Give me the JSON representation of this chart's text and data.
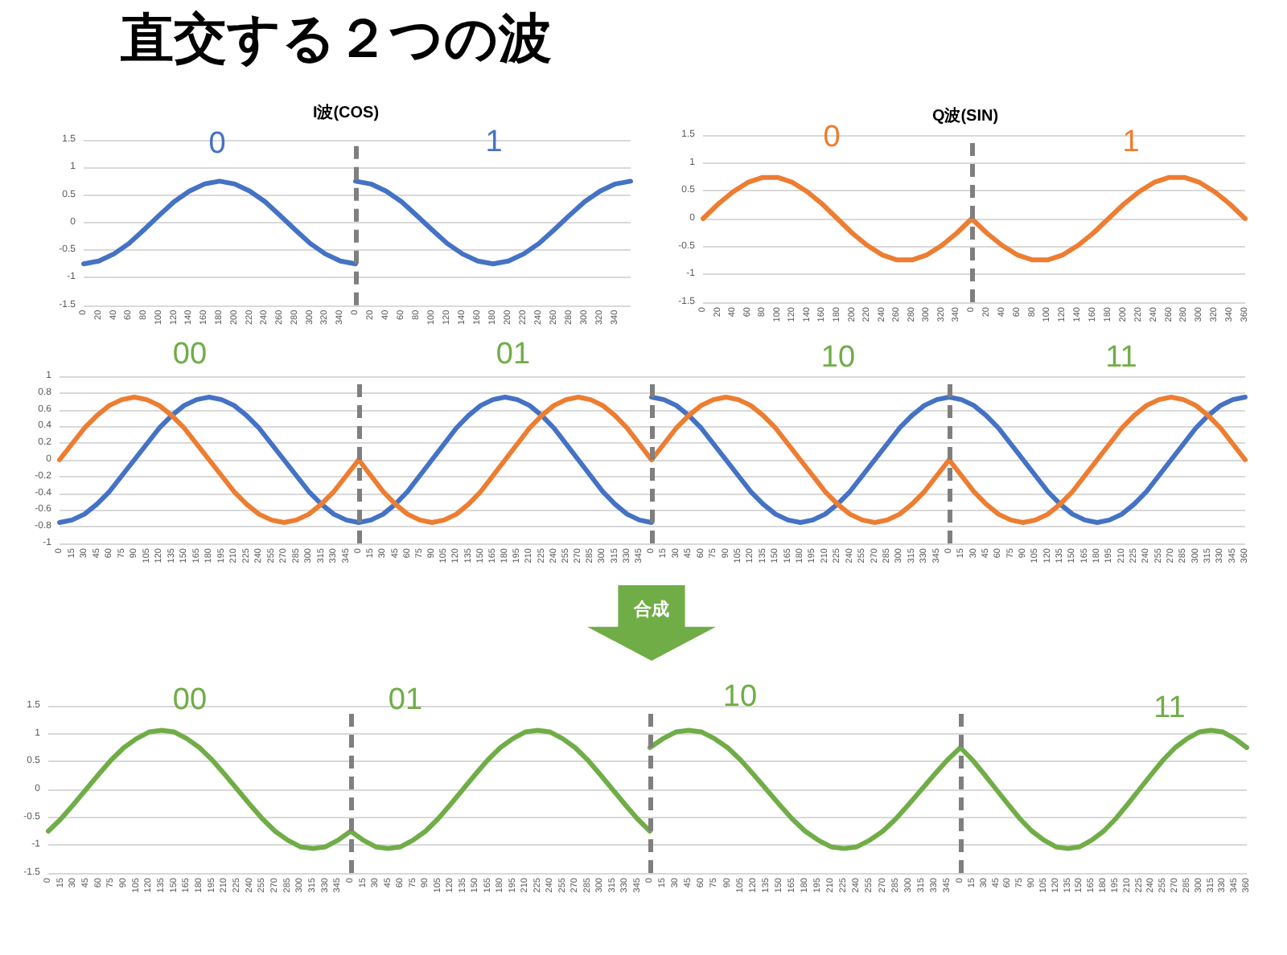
{
  "chart_data": [
    {
      "type": "other",
      "title": "直交する２つの波"
    },
    {
      "type": "line",
      "title": "I波(COS)",
      "x": [
        0,
        20,
        40,
        60,
        80,
        100,
        120,
        140,
        160,
        180,
        200,
        220,
        240,
        260,
        280,
        300,
        320,
        340,
        360
      ],
      "series": [
        {
          "color": "#4472c4",
          "values": [
            -0.75,
            -0.7,
            -0.57,
            -0.38,
            -0.13,
            0.13,
            0.38,
            0.57,
            0.7,
            0.75,
            0.7,
            0.57,
            0.38,
            0.13,
            -0.13,
            -0.38,
            -0.57,
            -0.7,
            -0.75
          ]
        }
      ],
      "xlim": [
        0,
        360
      ],
      "ylim": [
        -1.5,
        1.5
      ],
      "xticks": [
        0,
        20,
        40,
        60,
        80,
        100,
        120,
        140,
        160,
        180,
        200,
        220,
        240,
        260,
        280,
        300,
        320,
        340
      ],
      "yticks": [
        -1.5,
        -1,
        -0.5,
        0,
        0.5,
        1,
        1.5
      ],
      "grid": "y",
      "ref_lines": [
        {
          "axis": "x",
          "value": 360,
          "color": "#7f7f7f",
          "line_style": "dashed"
        }
      ],
      "annotations": [
        "0"
      ]
    },
    {
      "type": "line",
      "x": [
        0,
        20,
        40,
        60,
        80,
        100,
        120,
        140,
        160,
        180,
        200,
        220,
        240,
        260,
        280,
        300,
        320,
        340,
        360
      ],
      "series": [
        {
          "color": "#4472c4",
          "values": [
            0.75,
            0.7,
            0.57,
            0.38,
            0.13,
            -0.13,
            -0.38,
            -0.57,
            -0.7,
            -0.75,
            -0.7,
            -0.57,
            -0.38,
            -0.13,
            0.13,
            0.38,
            0.57,
            0.7,
            0.75
          ]
        }
      ],
      "xlim": [
        0,
        360
      ],
      "ylim": [
        -1.5,
        1.5
      ],
      "xticks": [
        0,
        20,
        40,
        60,
        80,
        100,
        120,
        140,
        160,
        180,
        200,
        220,
        240,
        260,
        280,
        300,
        320,
        340
      ],
      "yticks": [
        -1.5,
        -1,
        -0.5,
        0,
        0.5,
        1,
        1.5
      ],
      "grid": "y",
      "tick_labels": "x",
      "annotations": [
        "1"
      ]
    },
    {
      "type": "line",
      "title": "Q波(SIN)",
      "x": [
        0,
        20,
        40,
        60,
        80,
        100,
        120,
        140,
        160,
        180,
        200,
        220,
        240,
        260,
        280,
        300,
        320,
        340,
        360
      ],
      "series": [
        {
          "color": "#ed7d31",
          "values": [
            0,
            0.26,
            0.48,
            0.65,
            0.74,
            0.74,
            0.65,
            0.48,
            0.26,
            0,
            -0.26,
            -0.48,
            -0.65,
            -0.74,
            -0.74,
            -0.65,
            -0.48,
            -0.26,
            0
          ]
        }
      ],
      "xlim": [
        0,
        360
      ],
      "ylim": [
        -1.5,
        1.5
      ],
      "xticks": [
        0,
        20,
        40,
        60,
        80,
        100,
        120,
        140,
        160,
        180,
        200,
        220,
        240,
        260,
        280,
        300,
        320,
        340
      ],
      "yticks": [
        -1.5,
        -1,
        -0.5,
        0,
        0.5,
        1,
        1.5
      ],
      "grid": "y",
      "ref_lines": [
        {
          "axis": "x",
          "value": 360,
          "color": "#7f7f7f",
          "line_style": "dashed"
        }
      ],
      "annotations": [
        "0"
      ]
    },
    {
      "type": "line",
      "x": [
        0,
        20,
        40,
        60,
        80,
        100,
        120,
        140,
        160,
        180,
        200,
        220,
        240,
        260,
        280,
        300,
        320,
        340,
        360
      ],
      "series": [
        {
          "color": "#ed7d31",
          "values": [
            0,
            -0.26,
            -0.48,
            -0.65,
            -0.74,
            -0.74,
            -0.65,
            -0.48,
            -0.26,
            0,
            0.26,
            0.48,
            0.65,
            0.74,
            0.74,
            0.65,
            0.48,
            0.26,
            0
          ]
        }
      ],
      "xlim": [
        0,
        360
      ],
      "ylim": [
        -1.5,
        1.5
      ],
      "xticks": [
        0,
        20,
        40,
        60,
        80,
        100,
        120,
        140,
        160,
        180,
        200,
        220,
        240,
        260,
        280,
        300,
        320,
        340,
        360
      ],
      "yticks": [
        -1.5,
        -1,
        -0.5,
        0,
        0.5,
        1,
        1.5
      ],
      "grid": "y",
      "tick_labels": "x",
      "annotations": [
        "1"
      ]
    },
    {
      "type": "line",
      "x": [
        0,
        15,
        30,
        45,
        60,
        75,
        90,
        105,
        120,
        135,
        150,
        165,
        180,
        195,
        210,
        225,
        240,
        255,
        270,
        285,
        300,
        315,
        330,
        345,
        360
      ],
      "series": [
        {
          "color": "#4472c4",
          "values": [
            -0.75,
            -0.72,
            -0.65,
            -0.53,
            -0.38,
            -0.19,
            0,
            0.19,
            0.38,
            0.53,
            0.65,
            0.72,
            0.75,
            0.72,
            0.65,
            0.53,
            0.38,
            0.19,
            0,
            -0.19,
            -0.38,
            -0.53,
            -0.65,
            -0.72,
            -0.75
          ]
        },
        {
          "color": "#ed7d31",
          "values": [
            0,
            0.19,
            0.38,
            0.53,
            0.65,
            0.72,
            0.75,
            0.72,
            0.65,
            0.53,
            0.38,
            0.19,
            0,
            -0.19,
            -0.38,
            -0.53,
            -0.65,
            -0.72,
            -0.75,
            -0.72,
            -0.65,
            -0.53,
            -0.38,
            -0.19,
            0
          ]
        }
      ],
      "xlim": [
        0,
        360
      ],
      "ylim": [
        -1,
        1
      ],
      "xticks": [
        0,
        15,
        30,
        45,
        60,
        75,
        90,
        105,
        120,
        135,
        150,
        165,
        180,
        195,
        210,
        225,
        240,
        255,
        270,
        285,
        300,
        315,
        330,
        345
      ],
      "yticks": [
        -1,
        -0.8,
        -0.6,
        -0.4,
        -0.2,
        0,
        0.2,
        0.4,
        0.6,
        0.8,
        1
      ],
      "grid": "y",
      "ref_lines": [
        {
          "axis": "x",
          "value": 360,
          "color": "#7f7f7f",
          "line_style": "dashed"
        }
      ],
      "annotations": [
        "00"
      ]
    },
    {
      "type": "line",
      "x": [
        0,
        15,
        30,
        45,
        60,
        75,
        90,
        105,
        120,
        135,
        150,
        165,
        180,
        195,
        210,
        225,
        240,
        255,
        270,
        285,
        300,
        315,
        330,
        345,
        360
      ],
      "series": [
        {
          "color": "#4472c4",
          "values": [
            -0.75,
            -0.72,
            -0.65,
            -0.53,
            -0.38,
            -0.19,
            0,
            0.19,
            0.38,
            0.53,
            0.65,
            0.72,
            0.75,
            0.72,
            0.65,
            0.53,
            0.38,
            0.19,
            0,
            -0.19,
            -0.38,
            -0.53,
            -0.65,
            -0.72,
            -0.75
          ]
        },
        {
          "color": "#ed7d31",
          "values": [
            0,
            -0.19,
            -0.38,
            -0.53,
            -0.65,
            -0.72,
            -0.75,
            -0.72,
            -0.65,
            -0.53,
            -0.38,
            -0.19,
            0,
            0.19,
            0.38,
            0.53,
            0.65,
            0.72,
            0.75,
            0.72,
            0.65,
            0.53,
            0.38,
            0.19,
            0
          ]
        }
      ],
      "xlim": [
        0,
        360
      ],
      "ylim": [
        -1,
        1
      ],
      "xticks": [
        0,
        15,
        30,
        45,
        60,
        75,
        90,
        105,
        120,
        135,
        150,
        165,
        180,
        195,
        210,
        225,
        240,
        255,
        270,
        285,
        300,
        315,
        330,
        345
      ],
      "yticks": [
        -1,
        -0.8,
        -0.6,
        -0.4,
        -0.2,
        0,
        0.2,
        0.4,
        0.6,
        0.8,
        1
      ],
      "grid": "y",
      "tick_labels": "x",
      "ref_lines": [
        {
          "axis": "x",
          "value": 360,
          "color": "#7f7f7f",
          "line_style": "dashed"
        }
      ],
      "annotations": [
        "01"
      ]
    },
    {
      "type": "line",
      "x": [
        0,
        15,
        30,
        45,
        60,
        75,
        90,
        105,
        120,
        135,
        150,
        165,
        180,
        195,
        210,
        225,
        240,
        255,
        270,
        285,
        300,
        315,
        330,
        345,
        360
      ],
      "series": [
        {
          "color": "#4472c4",
          "values": [
            0.75,
            0.72,
            0.65,
            0.53,
            0.38,
            0.19,
            0,
            -0.19,
            -0.38,
            -0.53,
            -0.65,
            -0.72,
            -0.75,
            -0.72,
            -0.65,
            -0.53,
            -0.38,
            -0.19,
            0,
            0.19,
            0.38,
            0.53,
            0.65,
            0.72,
            0.75
          ]
        },
        {
          "color": "#ed7d31",
          "values": [
            0,
            0.19,
            0.38,
            0.53,
            0.65,
            0.72,
            0.75,
            0.72,
            0.65,
            0.53,
            0.38,
            0.19,
            0,
            -0.19,
            -0.38,
            -0.53,
            -0.65,
            -0.72,
            -0.75,
            -0.72,
            -0.65,
            -0.53,
            -0.38,
            -0.19,
            0
          ]
        }
      ],
      "xlim": [
        0,
        360
      ],
      "ylim": [
        -1,
        1
      ],
      "xticks": [
        0,
        15,
        30,
        45,
        60,
        75,
        90,
        105,
        120,
        135,
        150,
        165,
        180,
        195,
        210,
        225,
        240,
        255,
        270,
        285,
        300,
        315,
        330,
        345
      ],
      "yticks": [
        -1,
        -0.8,
        -0.6,
        -0.4,
        -0.2,
        0,
        0.2,
        0.4,
        0.6,
        0.8,
        1
      ],
      "grid": "y",
      "tick_labels": "x",
      "ref_lines": [
        {
          "axis": "x",
          "value": 360,
          "color": "#7f7f7f",
          "line_style": "dashed"
        }
      ],
      "annotations": [
        "10"
      ]
    },
    {
      "type": "line",
      "x": [
        0,
        15,
        30,
        45,
        60,
        75,
        90,
        105,
        120,
        135,
        150,
        165,
        180,
        195,
        210,
        225,
        240,
        255,
        270,
        285,
        300,
        315,
        330,
        345,
        360
      ],
      "series": [
        {
          "color": "#4472c4",
          "values": [
            0.75,
            0.72,
            0.65,
            0.53,
            0.38,
            0.19,
            0,
            -0.19,
            -0.38,
            -0.53,
            -0.65,
            -0.72,
            -0.75,
            -0.72,
            -0.65,
            -0.53,
            -0.38,
            -0.19,
            0,
            0.19,
            0.38,
            0.53,
            0.65,
            0.72,
            0.75
          ]
        },
        {
          "color": "#ed7d31",
          "values": [
            0,
            -0.19,
            -0.38,
            -0.53,
            -0.65,
            -0.72,
            -0.75,
            -0.72,
            -0.65,
            -0.53,
            -0.38,
            -0.19,
            0,
            0.19,
            0.38,
            0.53,
            0.65,
            0.72,
            0.75,
            0.72,
            0.65,
            0.53,
            0.38,
            0.19,
            0
          ]
        }
      ],
      "xlim": [
        0,
        360
      ],
      "ylim": [
        -1,
        1
      ],
      "xticks": [
        0,
        15,
        30,
        45,
        60,
        75,
        90,
        105,
        120,
        135,
        150,
        165,
        180,
        195,
        210,
        225,
        240,
        255,
        270,
        285,
        300,
        315,
        330,
        345,
        360
      ],
      "yticks": [
        -1,
        -0.8,
        -0.6,
        -0.4,
        -0.2,
        0,
        0.2,
        0.4,
        0.6,
        0.8,
        1
      ],
      "grid": "y",
      "tick_labels": "x",
      "annotations": [
        "11"
      ]
    },
    {
      "type": "other",
      "title": "合成"
    },
    {
      "type": "line",
      "x": [
        0,
        15,
        30,
        45,
        60,
        75,
        90,
        105,
        120,
        135,
        150,
        165,
        180,
        195,
        210,
        225,
        240,
        255,
        270,
        285,
        300,
        315,
        330,
        345,
        360
      ],
      "series": [
        {
          "color": "#70ad47",
          "values": [
            -0.75,
            -0.53,
            -0.27,
            0,
            0.27,
            0.53,
            0.75,
            0.91,
            1.03,
            1.06,
            1.03,
            0.91,
            0.75,
            0.53,
            0.27,
            0,
            -0.27,
            -0.53,
            -0.75,
            -0.91,
            -1.03,
            -1.06,
            -1.03,
            -0.91,
            -0.75
          ]
        }
      ],
      "xlim": [
        0,
        360
      ],
      "ylim": [
        -1.5,
        1.5
      ],
      "xticks": [
        0,
        15,
        30,
        45,
        60,
        75,
        90,
        105,
        120,
        135,
        150,
        165,
        180,
        195,
        210,
        225,
        240,
        255,
        270,
        285,
        300,
        315,
        330,
        345
      ],
      "yticks": [
        -1.5,
        -1,
        -0.5,
        0,
        0.5,
        1,
        1.5
      ],
      "grid": "y",
      "ref_lines": [
        {
          "axis": "x",
          "value": 360,
          "color": "#7f7f7f",
          "line_style": "dashed"
        }
      ],
      "annotations": [
        "00"
      ]
    },
    {
      "type": "line",
      "x": [
        0,
        15,
        30,
        45,
        60,
        75,
        90,
        105,
        120,
        135,
        150,
        165,
        180,
        195,
        210,
        225,
        240,
        255,
        270,
        285,
        300,
        315,
        330,
        345,
        360
      ],
      "series": [
        {
          "color": "#70ad47",
          "values": [
            -0.75,
            -0.91,
            -1.03,
            -1.06,
            -1.03,
            -0.91,
            -0.75,
            -0.53,
            -0.27,
            0,
            0.27,
            0.53,
            0.75,
            0.91,
            1.03,
            1.06,
            1.03,
            0.91,
            0.75,
            0.53,
            0.27,
            0,
            -0.27,
            -0.53,
            -0.75
          ]
        }
      ],
      "xlim": [
        0,
        360
      ],
      "ylim": [
        -1.5,
        1.5
      ],
      "xticks": [
        0,
        15,
        30,
        45,
        60,
        75,
        90,
        105,
        120,
        135,
        150,
        165,
        180,
        195,
        210,
        225,
        240,
        255,
        270,
        285,
        300,
        315,
        330,
        345
      ],
      "yticks": [
        -1.5,
        -1,
        -0.5,
        0,
        0.5,
        1,
        1.5
      ],
      "grid": "y",
      "tick_labels": "x",
      "ref_lines": [
        {
          "axis": "x",
          "value": 360,
          "color": "#7f7f7f",
          "line_style": "dashed"
        }
      ],
      "annotations": [
        "01"
      ]
    },
    {
      "type": "line",
      "x": [
        0,
        15,
        30,
        45,
        60,
        75,
        90,
        105,
        120,
        135,
        150,
        165,
        180,
        195,
        210,
        225,
        240,
        255,
        270,
        285,
        300,
        315,
        330,
        345,
        360
      ],
      "series": [
        {
          "color": "#70ad47",
          "values": [
            0.75,
            0.91,
            1.03,
            1.06,
            1.03,
            0.91,
            0.75,
            0.53,
            0.27,
            0,
            -0.27,
            -0.53,
            -0.75,
            -0.91,
            -1.03,
            -1.06,
            -1.03,
            -0.91,
            -0.75,
            -0.53,
            -0.27,
            0,
            0.27,
            0.53,
            0.75
          ]
        }
      ],
      "xlim": [
        0,
        360
      ],
      "ylim": [
        -1.5,
        1.5
      ],
      "xticks": [
        0,
        15,
        30,
        45,
        60,
        75,
        90,
        105,
        120,
        135,
        150,
        165,
        180,
        195,
        210,
        225,
        240,
        255,
        270,
        285,
        300,
        315,
        330,
        345
      ],
      "yticks": [
        -1.5,
        -1,
        -0.5,
        0,
        0.5,
        1,
        1.5
      ],
      "grid": "y",
      "tick_labels": "x",
      "ref_lines": [
        {
          "axis": "x",
          "value": 360,
          "color": "#7f7f7f",
          "line_style": "dashed"
        }
      ],
      "annotations": [
        "10"
      ]
    },
    {
      "type": "line",
      "x": [
        0,
        15,
        30,
        45,
        60,
        75,
        90,
        105,
        120,
        135,
        150,
        165,
        180,
        195,
        210,
        225,
        240,
        255,
        270,
        285,
        300,
        315,
        330,
        345,
        360
      ],
      "series": [
        {
          "color": "#70ad47",
          "values": [
            0.75,
            0.53,
            0.27,
            0,
            -0.27,
            -0.53,
            -0.75,
            -0.91,
            -1.03,
            -1.06,
            -1.03,
            -0.91,
            -0.75,
            -0.53,
            -0.27,
            0,
            0.27,
            0.53,
            0.75,
            0.91,
            1.03,
            1.06,
            1.03,
            0.91,
            0.75
          ]
        }
      ],
      "xlim": [
        0,
        360
      ],
      "ylim": [
        -1.5,
        1.5
      ],
      "xticks": [
        0,
        15,
        30,
        45,
        60,
        75,
        90,
        105,
        120,
        135,
        150,
        165,
        180,
        195,
        210,
        225,
        240,
        255,
        270,
        285,
        300,
        315,
        330,
        345,
        360
      ],
      "yticks": [
        -1.5,
        -1,
        -0.5,
        0,
        0.5,
        1,
        1.5
      ],
      "grid": "y",
      "tick_labels": "x",
      "annotations": [
        "11"
      ]
    }
  ]
}
